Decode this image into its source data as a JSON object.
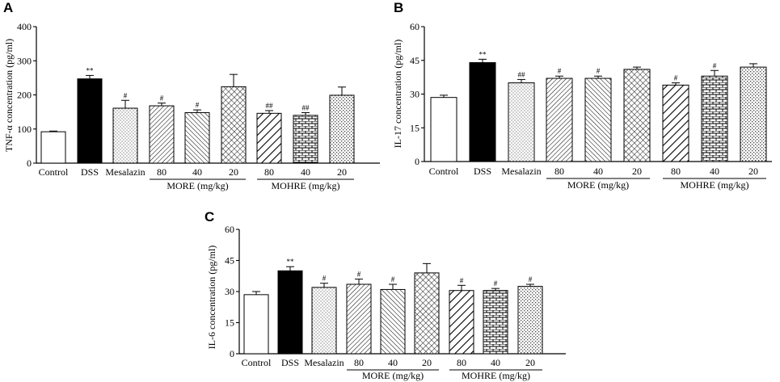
{
  "chart_data": [
    {
      "panel": "A",
      "type": "bar",
      "ylabel": "TNF-α concentration (pg/ml)",
      "ylim": [
        0,
        400
      ],
      "yticks": [
        0,
        100,
        200,
        300,
        400
      ],
      "categories": [
        "Control",
        "DSS",
        "Mesalazin",
        "80",
        "40",
        "20",
        "80",
        "40",
        "20"
      ],
      "values": [
        92,
        247,
        161,
        168,
        148,
        224,
        146,
        140,
        199
      ],
      "errors": [
        2,
        10,
        23,
        8,
        8,
        36,
        8,
        8,
        24
      ],
      "significance": [
        "",
        "**",
        "#",
        "#",
        "#",
        "",
        "##",
        "##",
        ""
      ],
      "groups": [
        {
          "label": "MORE (mg/kg)",
          "first": 3,
          "last": 5
        },
        {
          "label": "MOHRE (mg/kg)",
          "first": 6,
          "last": 8
        }
      ]
    },
    {
      "panel": "B",
      "type": "bar",
      "ylabel": "IL-17 concentration (pg/ml)",
      "ylim": [
        0,
        60
      ],
      "yticks": [
        0,
        15,
        30,
        45,
        60
      ],
      "categories": [
        "Control",
        "DSS",
        "Mesalazin",
        "80",
        "40",
        "20",
        "80",
        "40",
        "20"
      ],
      "values": [
        28.5,
        44,
        35,
        37,
        37,
        41,
        34,
        38,
        42
      ],
      "errors": [
        1,
        1.5,
        1.5,
        1,
        1,
        1,
        1,
        2.5,
        1.5
      ],
      "significance": [
        "",
        "**",
        "##",
        "#",
        "#",
        "",
        "#",
        "#",
        ""
      ],
      "groups": [
        {
          "label": "MORE (mg/kg)",
          "first": 3,
          "last": 5
        },
        {
          "label": "MOHRE (mg/kg)",
          "first": 6,
          "last": 8
        }
      ]
    },
    {
      "panel": "C",
      "type": "bar",
      "ylabel": "IL-6 concentration (pg/ml)",
      "ylim": [
        0,
        60
      ],
      "yticks": [
        0,
        15,
        30,
        45,
        60
      ],
      "categories": [
        "Control",
        "DSS",
        "Mesalazin",
        "80",
        "40",
        "20",
        "80",
        "40",
        "20"
      ],
      "values": [
        28.5,
        40,
        32,
        33.5,
        31,
        39,
        30.5,
        30.5,
        32.5
      ],
      "errors": [
        1.5,
        2,
        2,
        2.5,
        2.5,
        4.5,
        2.5,
        1,
        1
      ],
      "significance": [
        "",
        "**",
        "#",
        "#",
        "#",
        "",
        "#",
        "#",
        "#"
      ],
      "groups": [
        {
          "label": "MORE (mg/kg)",
          "first": 3,
          "last": 5
        },
        {
          "label": "MOHRE (mg/kg)",
          "first": 6,
          "last": 8
        }
      ]
    }
  ]
}
